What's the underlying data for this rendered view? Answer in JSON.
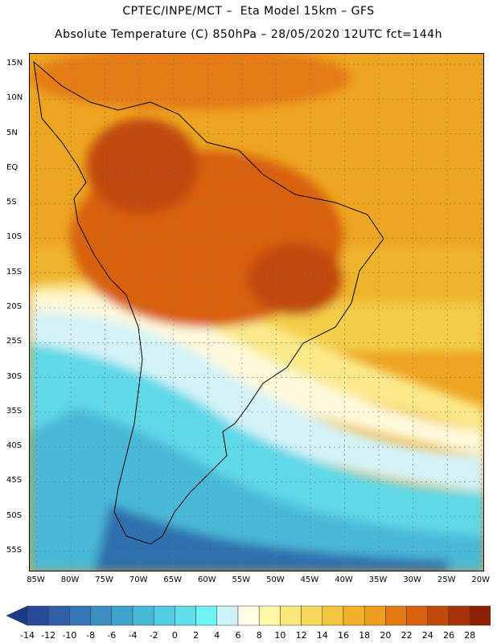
{
  "header": {
    "line1": "CPTEC/INPE/MCT –  Eta Model 15km – GFS",
    "line2": "Absolute Temperature (C) 850hPa – 28/05/2020 12UTC fct=144h"
  },
  "map": {
    "region": "South America",
    "lat_labels": [
      "15N",
      "10N",
      "5N",
      "EQ",
      "5S",
      "10S",
      "15S",
      "20S",
      "25S",
      "30S",
      "35S",
      "40S",
      "45S",
      "50S",
      "55S"
    ],
    "lon_labels": [
      "85W",
      "80W",
      "75W",
      "70W",
      "65W",
      "60W",
      "55W",
      "50W",
      "45W",
      "40W",
      "35W",
      "30W",
      "25W",
      "20W"
    ],
    "lat_values": [
      15,
      10,
      5,
      0,
      -5,
      -10,
      -15,
      -20,
      -25,
      -30,
      -35,
      -40,
      -45,
      -50,
      -55
    ],
    "lon_values": [
      -85,
      -80,
      -75,
      -70,
      -65,
      -60,
      -55,
      -50,
      -45,
      -40,
      -35,
      -30,
      -25,
      -20
    ],
    "lat_range": [
      -58,
      16.5
    ],
    "lon_range": [
      -86,
      -19.5
    ]
  },
  "colorbar": {
    "ticks": [
      "-14",
      "-12",
      "-10",
      "-8",
      "-6",
      "-4",
      "-2",
      "0",
      "2",
      "4",
      "6",
      "8",
      "10",
      "12",
      "14",
      "16",
      "18",
      "20",
      "22",
      "24",
      "26",
      "28"
    ],
    "colors": [
      "#2a4a9c",
      "#2f5fa8",
      "#3476b5",
      "#3a8ec2",
      "#3fa4cd",
      "#48b8d8",
      "#52cce2",
      "#5edfea",
      "#6df3f5",
      "#cdf3f8",
      "#fffbe6",
      "#fff7a8",
      "#fbe87a",
      "#f7d85a",
      "#f3c43d",
      "#f0b22a",
      "#ee9e1e",
      "#e67b12",
      "#d9600d",
      "#c24a0b",
      "#a83208",
      "#8c2106"
    ],
    "low_color": "#1f3a85",
    "high_color": "#7a0d1a"
  }
}
